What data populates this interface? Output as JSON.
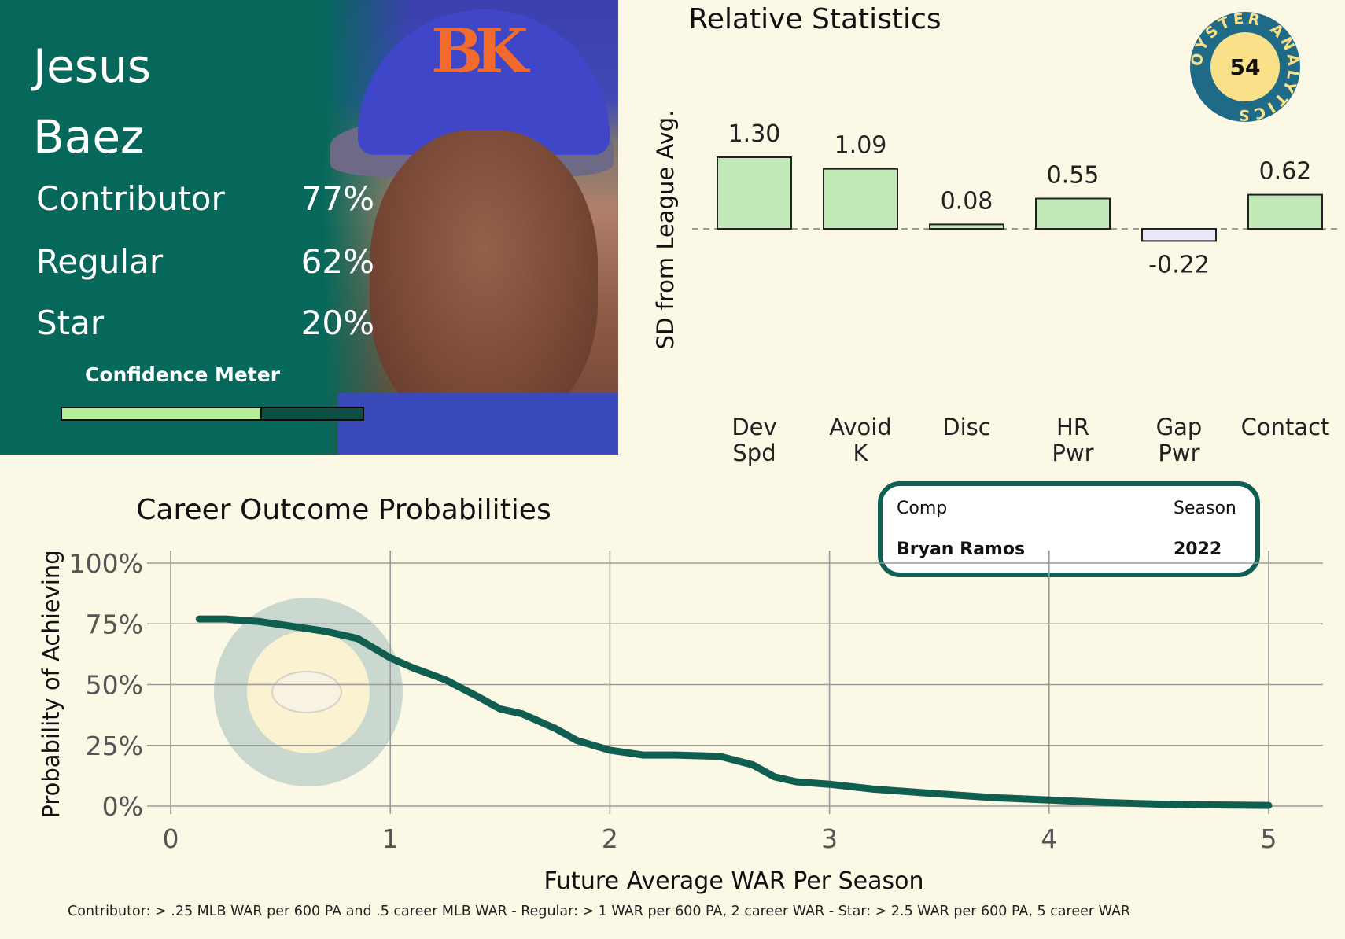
{
  "player": {
    "first_name": "Jesus",
    "last_name": "Baez",
    "outcomes": [
      {
        "label": "Contributor",
        "value": "77%"
      },
      {
        "label": "Regular",
        "value": "62%"
      },
      {
        "label": "Star",
        "value": "20%"
      }
    ],
    "confidence_label": "Confidence Meter",
    "confidence_fraction": 0.66
  },
  "badge": {
    "number": "54",
    "ring_text": "OYSTER ANALYTICS"
  },
  "comp": {
    "headers": [
      "Comp",
      "Season"
    ],
    "name": "Bryan Ramos",
    "season": "2022"
  },
  "footnote": "Contributor: > .25 MLB WAR per 600 PA and .5 career MLB WAR - Regular: > 1 WAR per 600 PA, 2 career WAR - Star: > 2.5 WAR per 600 PA, 5 career WAR",
  "colors": {
    "panel": "#05685a",
    "curve": "#0f5e50",
    "positive_bar": "#c2eab9",
    "negative_bar": "#e9e9fb",
    "background": "#fcf8e6",
    "badge_ring": "#1f6a87",
    "badge_center": "#fbe08a"
  },
  "chart_data": [
    {
      "type": "bar",
      "title": "Relative Statistics",
      "ylabel": "SD from League Avg.",
      "categories": [
        [
          "Dev",
          "Spd"
        ],
        [
          "Avoid",
          "K"
        ],
        [
          "Disc"
        ],
        [
          "HR",
          "Pwr"
        ],
        [
          "Gap",
          "Pwr"
        ],
        [
          "Contact"
        ]
      ],
      "values": [
        1.3,
        1.09,
        0.08,
        0.55,
        -0.22,
        0.62
      ],
      "data_labels": [
        "1.30",
        "1.09",
        "0.08",
        "0.55",
        "-0.22",
        "0.62"
      ],
      "baseline": 0,
      "ylim": [
        -1.4,
        1.5
      ],
      "grid": false
    },
    {
      "type": "line",
      "title": "Career Outcome Probabilities",
      "xlabel": "Future Average WAR Per Season",
      "ylabel": "Probability of Achieving",
      "xlim": [
        0,
        5
      ],
      "ylim": [
        0,
        100
      ],
      "xticks": [
        "0",
        "1",
        "2",
        "3",
        "4",
        "5"
      ],
      "yticks": [
        "0%",
        "25%",
        "50%",
        "75%",
        "100%"
      ],
      "grid": true,
      "x": [
        0.13,
        0.25,
        0.4,
        0.55,
        0.7,
        0.85,
        1.0,
        1.1,
        1.25,
        1.4,
        1.5,
        1.6,
        1.75,
        1.85,
        2.0,
        2.15,
        2.3,
        2.5,
        2.65,
        2.75,
        2.85,
        3.0,
        3.2,
        3.5,
        3.75,
        4.0,
        4.25,
        4.5,
        4.75,
        5.0
      ],
      "y": [
        77,
        77,
        76,
        74,
        72,
        69,
        61,
        57,
        52,
        45,
        40,
        38,
        32,
        27,
        23,
        21,
        21,
        20.5,
        17,
        12,
        10,
        9,
        7,
        5,
        3.5,
        2.5,
        1.5,
        0.8,
        0.5,
        0.3
      ]
    }
  ]
}
